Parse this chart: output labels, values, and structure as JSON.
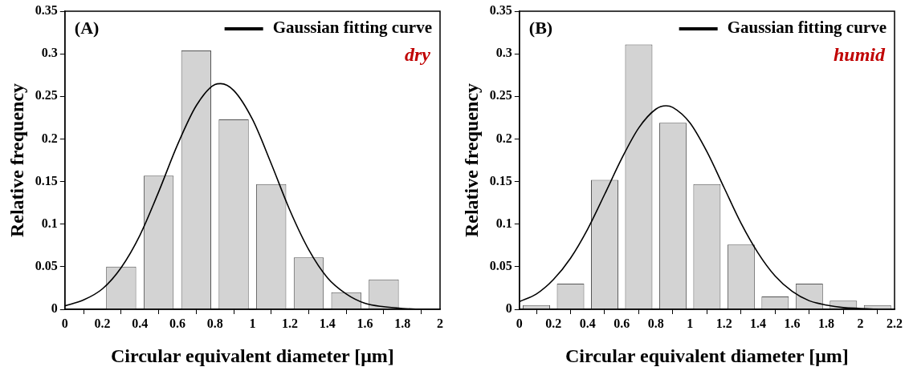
{
  "chart_data": [
    {
      "type": "histogram",
      "xlabel": "Circular equivalent diameter [μm]",
      "ylabel": "Relative frequency",
      "annotations": [
        "(A)",
        "dry"
      ],
      "bins": [
        0.2,
        0.4,
        0.6,
        0.8,
        1.0,
        1.2,
        1.4,
        1.6,
        1.8
      ],
      "values": [
        0.05,
        0.157,
        0.304,
        0.223,
        0.147,
        0.061,
        0.02,
        0.035
      ],
      "color": "#d3d3d3",
      "series": [
        {
          "type": "line",
          "name": "Gaussian fitting curve",
          "color": "#000000",
          "x": [
            0,
            0.1,
            0.2,
            0.3,
            0.4,
            0.5,
            0.6,
            0.7,
            0.8,
            0.83,
            0.9,
            1.0,
            1.1,
            1.2,
            1.3,
            1.4,
            1.5,
            1.6,
            1.7,
            1.8,
            1.9,
            2.0
          ],
          "values": [
            0.004,
            0.011,
            0.024,
            0.049,
            0.087,
            0.138,
            0.193,
            0.239,
            0.264,
            0.265,
            0.257,
            0.223,
            0.171,
            0.116,
            0.07,
            0.037,
            0.018,
            0.007,
            0.003,
            0.001,
            0,
            0
          ]
        }
      ],
      "xlim": [
        0,
        2
      ],
      "xticks": [
        0,
        0.2,
        0.4,
        0.6,
        0.8,
        1,
        1.2,
        1.4,
        1.6,
        1.8,
        2
      ],
      "ylim": [
        0,
        0.35
      ],
      "yticks": [
        0,
        0.05,
        0.1,
        0.15,
        0.2,
        0.25,
        0.3,
        0.35
      ],
      "legend": "top right"
    },
    {
      "type": "histogram",
      "xlabel": "Circular equivalent diameter [μm]",
      "ylabel": "Relative frequency",
      "annotations": [
        "(B)",
        "humid"
      ],
      "bins": [
        0,
        0.2,
        0.4,
        0.6,
        0.8,
        1.0,
        1.2,
        1.4,
        1.6,
        1.8,
        2.0,
        2.2
      ],
      "values": [
        0.005,
        0.03,
        0.152,
        0.311,
        0.219,
        0.147,
        0.076,
        0.015,
        0.03,
        0.01,
        0.005
      ],
      "color": "#d3d3d3",
      "series": [
        {
          "type": "line",
          "name": "Gaussian fitting curve",
          "color": "#000000",
          "x": [
            0,
            0.1,
            0.2,
            0.3,
            0.4,
            0.5,
            0.6,
            0.7,
            0.8,
            0.86,
            0.9,
            1.0,
            1.1,
            1.2,
            1.3,
            1.4,
            1.5,
            1.6,
            1.7,
            1.8,
            1.9,
            2.0,
            2.1
          ],
          "values": [
            0.009,
            0.018,
            0.035,
            0.06,
            0.094,
            0.135,
            0.177,
            0.213,
            0.235,
            0.239,
            0.237,
            0.219,
            0.185,
            0.143,
            0.101,
            0.066,
            0.039,
            0.021,
            0.01,
            0.005,
            0.002,
            0.001,
            0
          ]
        }
      ],
      "xlim": [
        0,
        2.2
      ],
      "xticks": [
        0,
        0.2,
        0.4,
        0.6,
        0.8,
        1,
        1.2,
        1.4,
        1.6,
        1.8,
        2,
        2.2
      ],
      "ylim": [
        0,
        0.35
      ],
      "yticks": [
        0,
        0.05,
        0.1,
        0.15,
        0.2,
        0.25,
        0.3,
        0.35
      ],
      "legend": "top right"
    }
  ]
}
